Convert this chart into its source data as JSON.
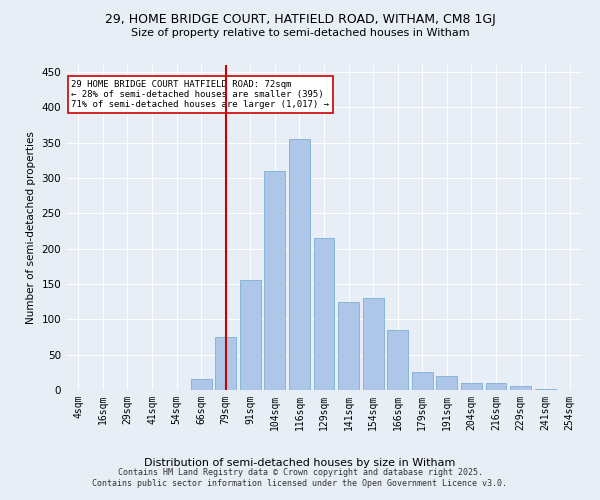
{
  "title_line1": "29, HOME BRIDGE COURT, HATFIELD ROAD, WITHAM, CM8 1GJ",
  "title_line2": "Size of property relative to semi-detached houses in Witham",
  "xlabel": "Distribution of semi-detached houses by size in Witham",
  "ylabel": "Number of semi-detached properties",
  "categories": [
    "4sqm",
    "16sqm",
    "29sqm",
    "41sqm",
    "54sqm",
    "66sqm",
    "79sqm",
    "91sqm",
    "104sqm",
    "116sqm",
    "129sqm",
    "141sqm",
    "154sqm",
    "166sqm",
    "179sqm",
    "191sqm",
    "204sqm",
    "216sqm",
    "229sqm",
    "241sqm",
    "254sqm"
  ],
  "values": [
    0,
    0,
    0,
    0,
    0,
    15,
    75,
    155,
    310,
    355,
    215,
    125,
    130,
    85,
    25,
    20,
    10,
    10,
    6,
    1,
    0
  ],
  "bar_color": "#aec6e8",
  "bar_edge_color": "#7daed4",
  "vline_x_index": 6,
  "vline_color": "#cc0000",
  "annotation_text": "29 HOME BRIDGE COURT HATFIELD ROAD: 72sqm\n← 28% of semi-detached houses are smaller (395)\n71% of semi-detached houses are larger (1,017) →",
  "annotation_box_color": "#ffffff",
  "annotation_box_edge": "#cc0000",
  "ylim": [
    0,
    460
  ],
  "yticks": [
    0,
    50,
    100,
    150,
    200,
    250,
    300,
    350,
    400,
    450
  ],
  "bg_color": "#e8eef6",
  "footer_line1": "Contains HM Land Registry data © Crown copyright and database right 2025.",
  "footer_line2": "Contains public sector information licensed under the Open Government Licence v3.0.",
  "fig_width": 6.0,
  "fig_height": 5.0
}
